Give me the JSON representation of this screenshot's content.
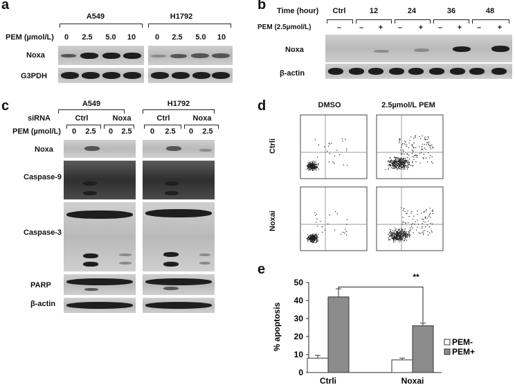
{
  "panels": {
    "a": {
      "letter": "a",
      "cell_lines": [
        "A549",
        "H1792"
      ],
      "pem_label": "PEM (µmol/L)",
      "doses": [
        "0",
        "2.5",
        "5.0",
        "10",
        "0",
        "2.5",
        "5.0",
        "10"
      ],
      "rows": [
        "Noxa",
        "G3PDH"
      ]
    },
    "b": {
      "letter": "b",
      "time_label": "Time (hour)",
      "times": [
        "Ctrl",
        "12",
        "24",
        "36",
        "48"
      ],
      "pem_label": "PEM (2.5µmol/L)",
      "signs": [
        "–",
        "–",
        "+",
        "–",
        "+",
        "–",
        "+",
        "–",
        "+"
      ],
      "rows": [
        "Noxa",
        "β-actin"
      ]
    },
    "c": {
      "letter": "c",
      "cell_lines": [
        "A549",
        "H1792"
      ],
      "sirna_label": "siRNA",
      "sirna": [
        "Ctrl",
        "Noxa",
        "Ctrl",
        "Noxa"
      ],
      "pem_label": "PEM (µmol/L)",
      "doses": [
        "0",
        "2.5",
        "0",
        "2.5",
        "0",
        "2.5",
        "0",
        "2.5"
      ],
      "rows": [
        "Noxa",
        "Caspase-9",
        "Caspase-3",
        "PARP",
        "β-actin"
      ]
    },
    "d": {
      "letter": "d",
      "columns": [
        "DMSO",
        "2.5µmol/L PEM"
      ],
      "rows": [
        "Ctrli",
        "Noxai"
      ]
    },
    "e": {
      "letter": "e",
      "significance": "**"
    }
  },
  "chart_data": {
    "type": "bar",
    "categories": [
      "Ctrli",
      "Noxai"
    ],
    "series": [
      {
        "name": "PEM-",
        "values": [
          8,
          7
        ],
        "errors": [
          1.5,
          1
        ],
        "color": "#ffffff"
      },
      {
        "name": "PEM+",
        "values": [
          42,
          26
        ],
        "errors": [
          4.5,
          1.5
        ],
        "color": "#8c8c8c"
      }
    ],
    "ylabel": "% apoptosis",
    "xlabel": "",
    "ylim": [
      0,
      50
    ],
    "yticks": [
      0,
      10,
      20,
      30,
      40,
      50
    ],
    "legend": "right",
    "grid": false
  }
}
